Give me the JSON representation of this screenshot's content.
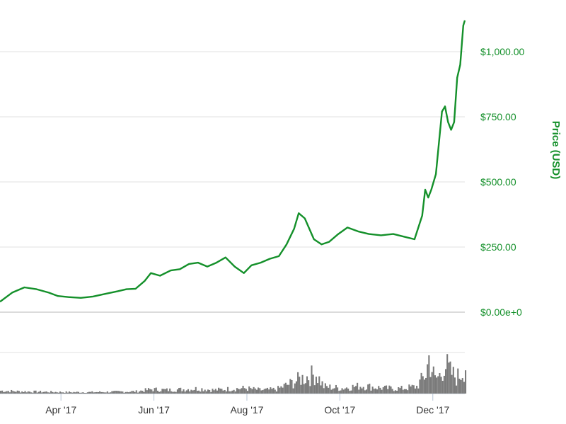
{
  "chart_data": {
    "type": "line",
    "ylabel": "Price (USD)",
    "price_ticks": [
      {
        "value": 0,
        "label": "$0.00e+0"
      },
      {
        "value": 250,
        "label": "$250.00"
      },
      {
        "value": 500,
        "label": "$500.00"
      },
      {
        "value": 750,
        "label": "$750.00"
      },
      {
        "value": 1000,
        "label": "$1,000.00"
      }
    ],
    "ylim": [
      0,
      1150
    ],
    "x_ticks": [
      {
        "date": "2017-04-01",
        "label": "Apr '17"
      },
      {
        "date": "2017-06-01",
        "label": "Jun '17"
      },
      {
        "date": "2017-08-01",
        "label": "Aug '17"
      },
      {
        "date": "2017-10-01",
        "label": "Oct '17"
      },
      {
        "date": "2017-12-01",
        "label": "Dec '17"
      }
    ],
    "xlim": [
      "2017-02-20",
      "2017-12-22"
    ],
    "colors": {
      "price": "#14902a",
      "volume": "#7a7a7a",
      "grid": "#e0e0e0"
    },
    "series": [
      {
        "values": [
          [
            "2017-02-20",
            40
          ],
          [
            "2017-02-28",
            75
          ],
          [
            "2017-03-08",
            95
          ],
          [
            "2017-03-16",
            88
          ],
          [
            "2017-03-24",
            75
          ],
          [
            "2017-03-30",
            62
          ],
          [
            "2017-04-06",
            58
          ],
          [
            "2017-04-14",
            55
          ],
          [
            "2017-04-22",
            60
          ],
          [
            "2017-04-30",
            70
          ],
          [
            "2017-05-08",
            80
          ],
          [
            "2017-05-14",
            88
          ],
          [
            "2017-05-20",
            90
          ],
          [
            "2017-05-26",
            120
          ],
          [
            "2017-05-30",
            150
          ],
          [
            "2017-06-05",
            140
          ],
          [
            "2017-06-12",
            160
          ],
          [
            "2017-06-18",
            165
          ],
          [
            "2017-06-24",
            185
          ],
          [
            "2017-06-30",
            190
          ],
          [
            "2017-07-06",
            175
          ],
          [
            "2017-07-12",
            190
          ],
          [
            "2017-07-18",
            210
          ],
          [
            "2017-07-24",
            175
          ],
          [
            "2017-07-30",
            150
          ],
          [
            "2017-08-04",
            180
          ],
          [
            "2017-08-10",
            190
          ],
          [
            "2017-08-16",
            205
          ],
          [
            "2017-08-22",
            215
          ],
          [
            "2017-08-27",
            260
          ],
          [
            "2017-09-01",
            320
          ],
          [
            "2017-09-04",
            380
          ],
          [
            "2017-09-08",
            360
          ],
          [
            "2017-09-14",
            280
          ],
          [
            "2017-09-19",
            260
          ],
          [
            "2017-09-24",
            270
          ],
          [
            "2017-09-30",
            300
          ],
          [
            "2017-10-06",
            325
          ],
          [
            "2017-10-13",
            310
          ],
          [
            "2017-10-20",
            300
          ],
          [
            "2017-10-28",
            295
          ],
          [
            "2017-11-05",
            300
          ],
          [
            "2017-11-12",
            290
          ],
          [
            "2017-11-19",
            280
          ],
          [
            "2017-11-24",
            370
          ],
          [
            "2017-11-26",
            470
          ],
          [
            "2017-11-28",
            440
          ],
          [
            "2017-11-30",
            470
          ],
          [
            "2017-12-03",
            530
          ],
          [
            "2017-12-05",
            650
          ],
          [
            "2017-12-07",
            770
          ],
          [
            "2017-12-09",
            790
          ],
          [
            "2017-12-11",
            730
          ],
          [
            "2017-12-13",
            700
          ],
          [
            "2017-12-15",
            730
          ],
          [
            "2017-12-17",
            900
          ],
          [
            "2017-12-19",
            950
          ],
          [
            "2017-12-21",
            1100
          ],
          [
            "2017-12-22",
            1120
          ]
        ]
      }
    ],
    "volume_series": [
      [
        "2017-02-20",
        0.08
      ],
      [
        "2017-03-05",
        0.06
      ],
      [
        "2017-03-20",
        0.05
      ],
      [
        "2017-04-05",
        0.04
      ],
      [
        "2017-04-20",
        0.04
      ],
      [
        "2017-05-05",
        0.05
      ],
      [
        "2017-05-20",
        0.06
      ],
      [
        "2017-05-30",
        0.12
      ],
      [
        "2017-06-10",
        0.1
      ],
      [
        "2017-06-20",
        0.12
      ],
      [
        "2017-06-30",
        0.14
      ],
      [
        "2017-07-10",
        0.1
      ],
      [
        "2017-07-20",
        0.13
      ],
      [
        "2017-07-30",
        0.15
      ],
      [
        "2017-08-10",
        0.1
      ],
      [
        "2017-08-20",
        0.12
      ],
      [
        "2017-08-30",
        0.3
      ],
      [
        "2017-09-05",
        0.42
      ],
      [
        "2017-09-15",
        0.55
      ],
      [
        "2017-09-20",
        0.2
      ],
      [
        "2017-10-01",
        0.15
      ],
      [
        "2017-10-15",
        0.22
      ],
      [
        "2017-10-30",
        0.15
      ],
      [
        "2017-11-10",
        0.14
      ],
      [
        "2017-11-20",
        0.2
      ],
      [
        "2017-11-26",
        0.55
      ],
      [
        "2017-11-28",
        1.0
      ],
      [
        "2017-12-02",
        0.4
      ],
      [
        "2017-12-06",
        0.55
      ],
      [
        "2017-12-08",
        0.88
      ],
      [
        "2017-12-12",
        0.6
      ],
      [
        "2017-12-16",
        0.45
      ],
      [
        "2017-12-19",
        0.55
      ],
      [
        "2017-12-22",
        0.8
      ]
    ]
  }
}
